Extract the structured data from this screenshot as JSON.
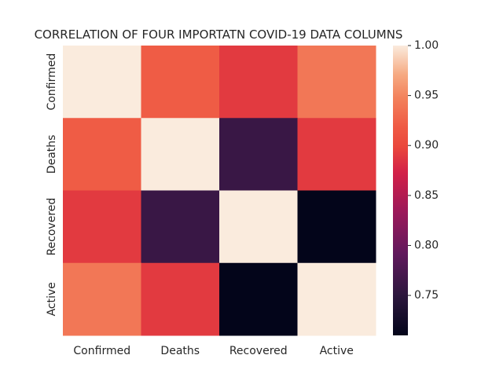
{
  "chart_data": {
    "type": "heatmap",
    "title": "CORRELATION OF FOUR IMPORTATN COVID-19 DATA COLUMNS",
    "x_categories": [
      "Confirmed",
      "Deaths",
      "Recovered",
      "Active"
    ],
    "y_categories": [
      "Confirmed",
      "Deaths",
      "Recovered",
      "Active"
    ],
    "values": [
      [
        1.0,
        0.92,
        0.89,
        0.94
      ],
      [
        0.92,
        1.0,
        0.76,
        0.89
      ],
      [
        0.89,
        0.76,
        1.0,
        0.71
      ],
      [
        0.94,
        0.89,
        0.71,
        1.0
      ]
    ],
    "colorbar": {
      "range": [
        0.71,
        1.0
      ],
      "ticks": [
        "0.75",
        "0.80",
        "0.85",
        "0.90",
        "0.95",
        "1.00"
      ],
      "colormap": "rocket"
    }
  }
}
